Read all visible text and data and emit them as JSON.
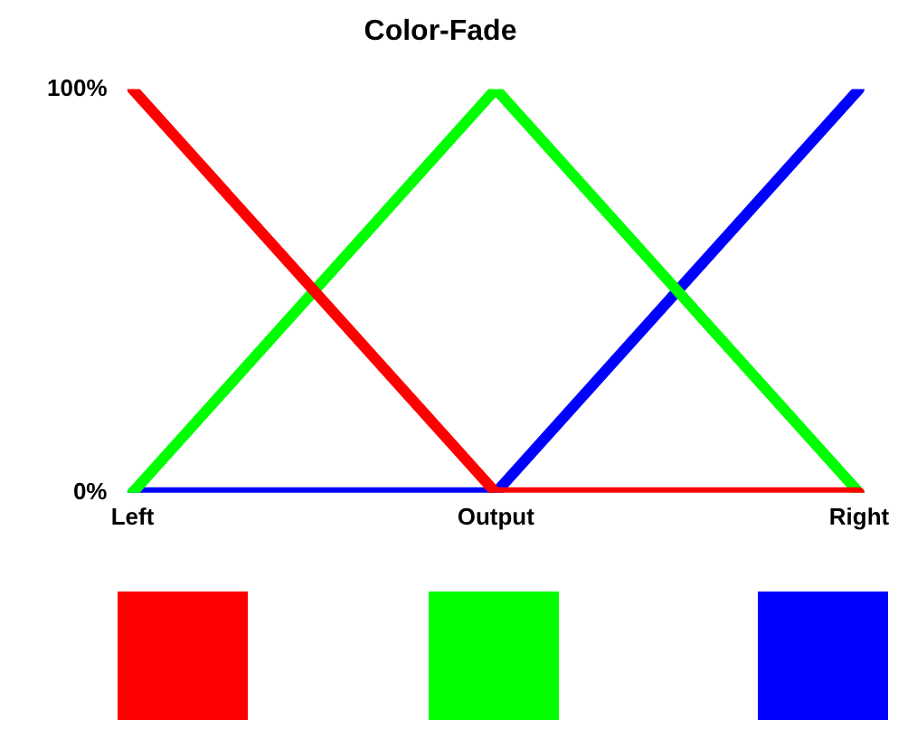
{
  "chart_data": {
    "type": "line",
    "title": "Color-Fade",
    "categories": [
      "Left",
      "Output",
      "Right"
    ],
    "series": [
      {
        "color": "#ff0000",
        "values": [
          100,
          0,
          0
        ]
      },
      {
        "color": "#00ff00",
        "values": [
          0,
          100,
          0
        ]
      },
      {
        "color": "#0000ff",
        "values": [
          0,
          0,
          100
        ]
      }
    ],
    "ylim": [
      0,
      100
    ],
    "yticks": [
      {
        "value": 0,
        "label": "0%"
      },
      {
        "value": 100,
        "label": "100%"
      }
    ],
    "grid": false,
    "legend": false,
    "marker": "none",
    "line_style": "solid"
  }
}
